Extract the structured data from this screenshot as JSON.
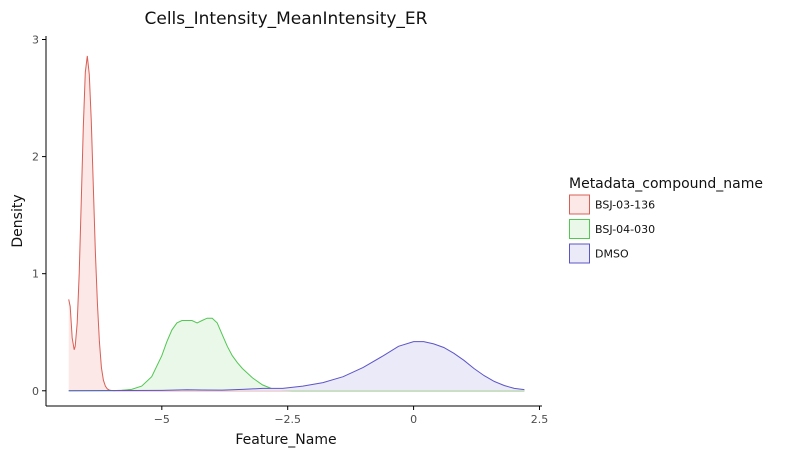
{
  "chart_data": {
    "type": "area",
    "title": "Cells_Intensity_MeanIntensity_ER",
    "xlabel": "Feature_Name",
    "ylabel": "Density",
    "xlim": [
      -7.3,
      2.55
    ],
    "ylim": [
      -0.13,
      3.03
    ],
    "x_ticks": [
      -5,
      -2.5,
      0,
      2.5
    ],
    "x_tick_labels": [
      "−5",
      "−2.5",
      "0",
      "2.5"
    ],
    "y_ticks": [
      0,
      1,
      2,
      3
    ],
    "y_tick_labels": [
      "0",
      "1",
      "2",
      "3"
    ],
    "grid": false,
    "legend": {
      "title": "Metadata_compound_name",
      "position": "right",
      "items": [
        "BSJ-03-136",
        "BSJ-04-030",
        "DMSO"
      ]
    },
    "series": [
      {
        "name": "BSJ-03-136",
        "line_color": "#d95f55",
        "fill_color": "#fbe8e7",
        "x": [
          -6.85,
          -6.82,
          -6.78,
          -6.74,
          -6.72,
          -6.68,
          -6.64,
          -6.6,
          -6.56,
          -6.52,
          -6.48,
          -6.44,
          -6.4,
          -6.36,
          -6.32,
          -6.28,
          -6.24,
          -6.2,
          -6.16,
          -6.12,
          -6.08,
          -6.04,
          -6.0,
          -5.95,
          -5.9,
          -5.7,
          2.2
        ],
        "y": [
          0.78,
          0.72,
          0.45,
          0.35,
          0.38,
          0.58,
          1.0,
          1.6,
          2.25,
          2.72,
          2.86,
          2.7,
          2.3,
          1.75,
          1.2,
          0.75,
          0.42,
          0.2,
          0.09,
          0.04,
          0.015,
          0.006,
          0.002,
          0.001,
          0.0,
          0.0,
          0.0
        ]
      },
      {
        "name": "BSJ-04-030",
        "line_color": "#53c653",
        "fill_color": "#e9f8e9",
        "x": [
          -6.85,
          -6.0,
          -5.8,
          -5.6,
          -5.4,
          -5.2,
          -5.0,
          -4.9,
          -4.8,
          -4.7,
          -4.6,
          -4.5,
          -4.4,
          -4.3,
          -4.2,
          -4.1,
          -4.0,
          -3.9,
          -3.8,
          -3.7,
          -3.6,
          -3.5,
          -3.4,
          -3.2,
          -3.0,
          -2.8,
          -2.6,
          -2.4,
          -2.2,
          2.2
        ],
        "y": [
          0.0,
          0.0,
          0.004,
          0.012,
          0.04,
          0.12,
          0.3,
          0.42,
          0.52,
          0.58,
          0.6,
          0.6,
          0.6,
          0.58,
          0.6,
          0.62,
          0.62,
          0.58,
          0.48,
          0.38,
          0.3,
          0.24,
          0.19,
          0.11,
          0.05,
          0.015,
          0.004,
          0.001,
          0.0,
          0.0
        ]
      },
      {
        "name": "DMSO",
        "line_color": "#5c55c9",
        "fill_color": "#ebeaf8",
        "x": [
          -6.85,
          -5.0,
          -4.5,
          -4.2,
          -3.8,
          -3.4,
          -3.0,
          -2.6,
          -2.2,
          -1.8,
          -1.4,
          -1.0,
          -0.6,
          -0.3,
          0.0,
          0.2,
          0.4,
          0.6,
          0.8,
          1.0,
          1.2,
          1.4,
          1.6,
          1.8,
          2.0,
          2.2
        ],
        "y": [
          0.0,
          0.003,
          0.008,
          0.007,
          0.006,
          0.012,
          0.02,
          0.02,
          0.04,
          0.07,
          0.12,
          0.2,
          0.3,
          0.38,
          0.42,
          0.42,
          0.4,
          0.37,
          0.32,
          0.26,
          0.19,
          0.13,
          0.08,
          0.045,
          0.02,
          0.01
        ]
      }
    ]
  }
}
